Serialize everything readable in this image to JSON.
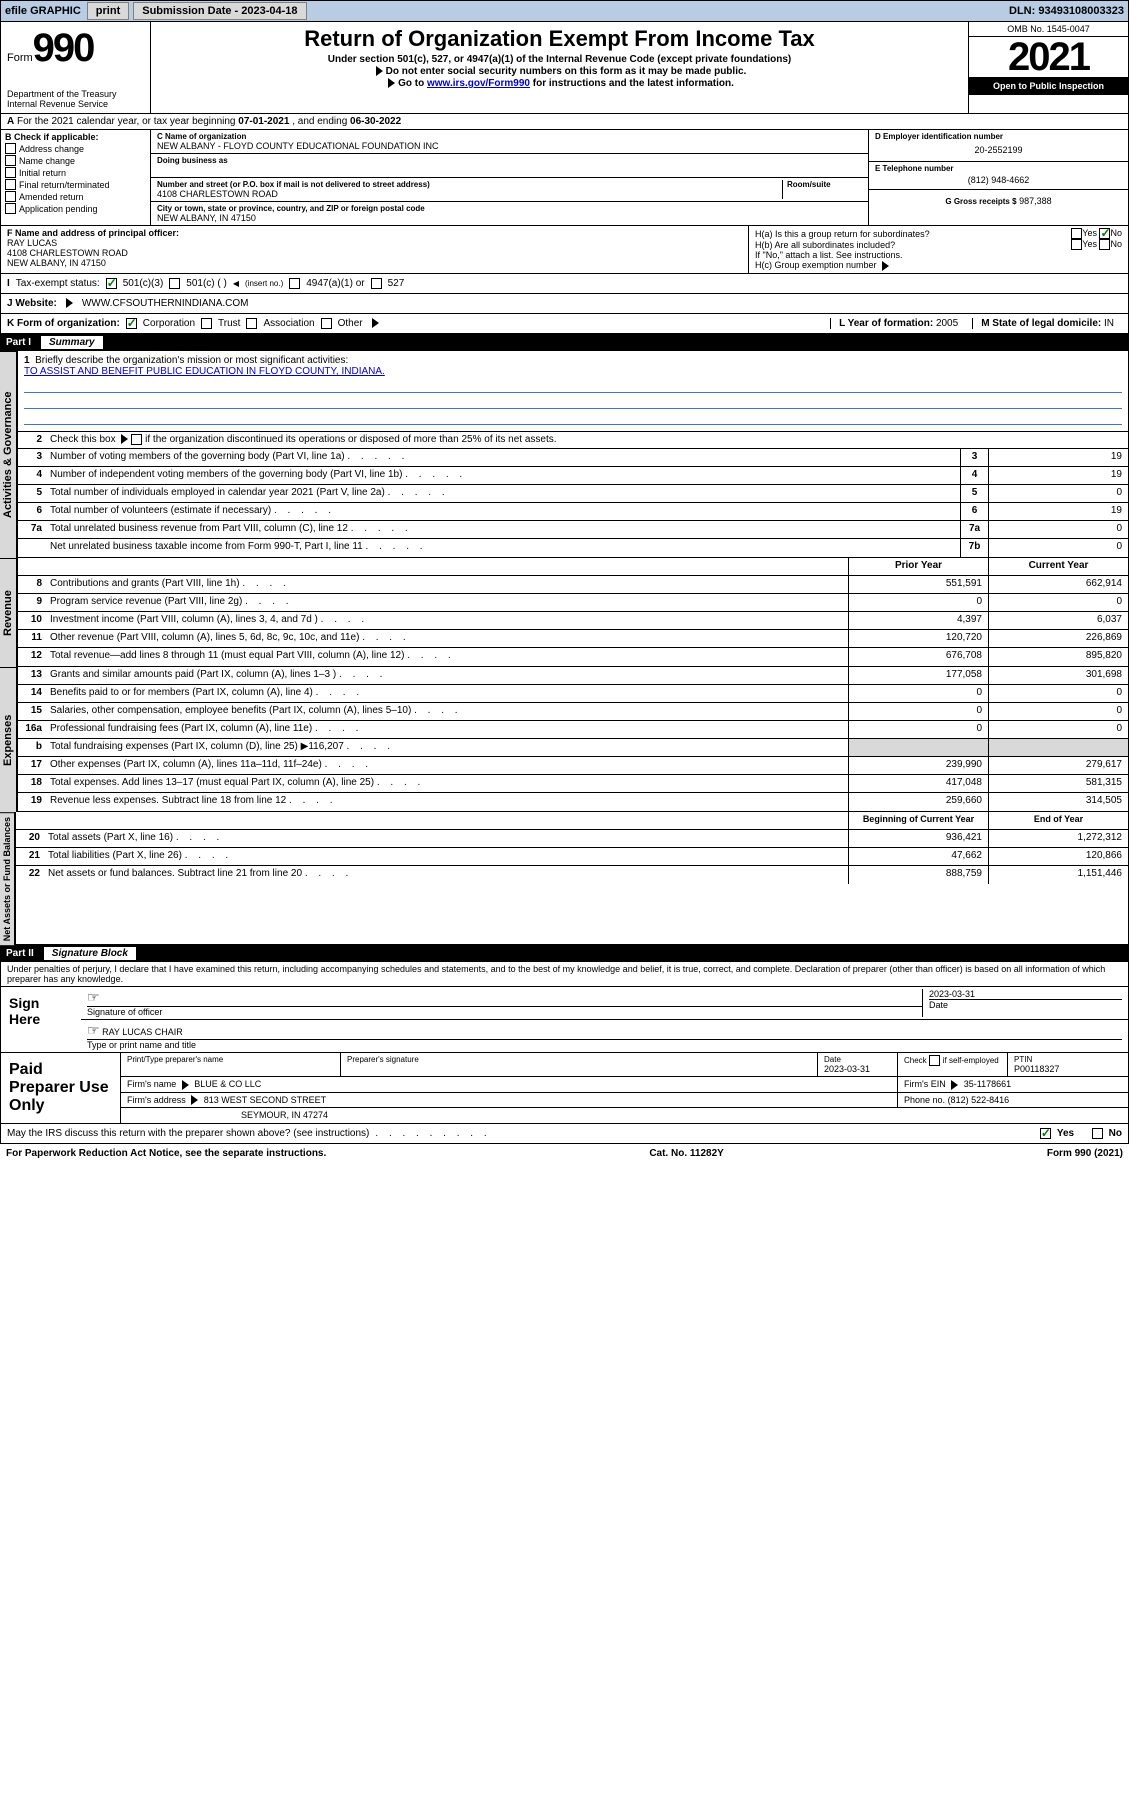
{
  "topbar": {
    "efile": "efile GRAPHIC",
    "print": "print",
    "sub_lbl": "Submission Date - 2023-04-18",
    "dln": "DLN: 93493108003323"
  },
  "header": {
    "form": "Form",
    "num": "990",
    "dept": "Department of the Treasury\nInternal Revenue Service",
    "title": "Return of Organization Exempt From Income Tax",
    "sub1": "Under section 501(c), 527, or 4947(a)(1) of the Internal Revenue Code (except private foundations)",
    "sub2": "Do not enter social security numbers on this form as it may be made public.",
    "sub3": "Go to ",
    "sub3_link": "www.irs.gov/Form990",
    "sub3_tail": " for instructions and the latest information.",
    "omb": "OMB No. 1545-0047",
    "year": "2021",
    "inspect": "Open to Public Inspection"
  },
  "line_a": {
    "text": "For the 2021 calendar year, or tax year beginning ",
    "begin": "07-01-2021",
    "mid": " , and ending ",
    "end": "06-30-2022"
  },
  "col_b": {
    "hdr": "B Check if applicable:",
    "items": [
      "Address change",
      "Name change",
      "Initial return",
      "Final return/terminated",
      "Amended return",
      "Application pending"
    ]
  },
  "col_c": {
    "name_lbl": "C Name of organization",
    "name": "NEW ALBANY - FLOYD COUNTY EDUCATIONAL FOUNDATION INC",
    "dba_lbl": "Doing business as",
    "addr_lbl": "Number and street (or P.O. box if mail is not delivered to street address)",
    "room_lbl": "Room/suite",
    "addr": "4108 CHARLESTOWN ROAD",
    "city_lbl": "City or town, state or province, country, and ZIP or foreign postal code",
    "city": "NEW ALBANY, IN  47150"
  },
  "col_d": {
    "ein_lbl": "D Employer identification number",
    "ein": "20-2552199",
    "tel_lbl": "E Telephone number",
    "tel": "(812) 948-4662",
    "gross_lbl": "G Gross receipts $",
    "gross": "987,388"
  },
  "col_f": {
    "lbl": "F Name and address of principal officer:",
    "name": "RAY LUCAS",
    "addr1": "4108 CHARLESTOWN ROAD",
    "addr2": "NEW ALBANY, IN  47150"
  },
  "col_h": {
    "ha": "H(a)  Is this a group return for subordinates?",
    "hb": "H(b)  Are all subordinates included?",
    "hb_note": "If \"No,\" attach a list. See instructions.",
    "hc": "H(c)  Group exemption number",
    "yes": "Yes",
    "no": "No"
  },
  "tax_status": {
    "lbl": "Tax-exempt status:",
    "o1": "501(c)(3)",
    "o2": "501(c) (  )",
    "o2_tail": "(insert no.)",
    "o3": "4947(a)(1) or",
    "o4": "527"
  },
  "website": {
    "lbl": "J   Website:",
    "val": "WWW.CFSOUTHERNINDIANA.COM"
  },
  "line_k": {
    "lbl": "K Form of organization:",
    "corp": "Corporation",
    "trust": "Trust",
    "assoc": "Association",
    "other": "Other",
    "yof_lbl": "L Year of formation:",
    "yof": "2005",
    "dom_lbl": "M State of legal domicile:",
    "dom": "IN"
  },
  "part1": {
    "hdr": "Part I",
    "ttl": "Summary",
    "tab_gov": "Activities & Governance",
    "tab_rev": "Revenue",
    "tab_exp": "Expenses",
    "tab_net": "Net Assets or Fund Balances",
    "q1": "Briefly describe the organization's mission or most significant activities:",
    "q1_val": "TO ASSIST AND BENEFIT PUBLIC EDUCATION IN FLOYD COUNTY, INDIANA.",
    "q2": "Check this box",
    "q2_tail": "if the organization discontinued its operations or disposed of more than 25% of its net assets.",
    "rows_gov": [
      {
        "n": "3",
        "t": "Number of voting members of the governing body (Part VI, line 1a)",
        "b": "3",
        "v": "19"
      },
      {
        "n": "4",
        "t": "Number of independent voting members of the governing body (Part VI, line 1b)",
        "b": "4",
        "v": "19"
      },
      {
        "n": "5",
        "t": "Total number of individuals employed in calendar year 2021 (Part V, line 2a)",
        "b": "5",
        "v": "0"
      },
      {
        "n": "6",
        "t": "Total number of volunteers (estimate if necessary)",
        "b": "6",
        "v": "19"
      },
      {
        "n": "7a",
        "t": "Total unrelated business revenue from Part VIII, column (C), line 12",
        "b": "7a",
        "v": "0"
      },
      {
        "n": "",
        "t": "Net unrelated business taxable income from Form 990-T, Part I, line 11",
        "b": "7b",
        "v": "0"
      }
    ],
    "prior_lbl": "Prior Year",
    "curr_lbl": "Current Year",
    "rows_rev": [
      {
        "n": "8",
        "t": "Contributions and grants (Part VIII, line 1h)",
        "p": "551,591",
        "c": "662,914"
      },
      {
        "n": "9",
        "t": "Program service revenue (Part VIII, line 2g)",
        "p": "0",
        "c": "0"
      },
      {
        "n": "10",
        "t": "Investment income (Part VIII, column (A), lines 3, 4, and 7d )",
        "p": "4,397",
        "c": "6,037"
      },
      {
        "n": "11",
        "t": "Other revenue (Part VIII, column (A), lines 5, 6d, 8c, 9c, 10c, and 11e)",
        "p": "120,720",
        "c": "226,869"
      },
      {
        "n": "12",
        "t": "Total revenue—add lines 8 through 11 (must equal Part VIII, column (A), line 12)",
        "p": "676,708",
        "c": "895,820"
      }
    ],
    "rows_exp": [
      {
        "n": "13",
        "t": "Grants and similar amounts paid (Part IX, column (A), lines 1–3 )",
        "p": "177,058",
        "c": "301,698"
      },
      {
        "n": "14",
        "t": "Benefits paid to or for members (Part IX, column (A), line 4)",
        "p": "0",
        "c": "0"
      },
      {
        "n": "15",
        "t": "Salaries, other compensation, employee benefits (Part IX, column (A), lines 5–10)",
        "p": "0",
        "c": "0"
      },
      {
        "n": "16a",
        "t": "Professional fundraising fees (Part IX, column (A), line 11e)",
        "p": "0",
        "c": "0"
      },
      {
        "n": "b",
        "t": "Total fundraising expenses (Part IX, column (D), line 25) ▶116,207",
        "p": "",
        "c": "",
        "shade": true
      },
      {
        "n": "17",
        "t": "Other expenses (Part IX, column (A), lines 11a–11d, 11f–24e)",
        "p": "239,990",
        "c": "279,617"
      },
      {
        "n": "18",
        "t": "Total expenses. Add lines 13–17 (must equal Part IX, column (A), line 25)",
        "p": "417,048",
        "c": "581,315"
      },
      {
        "n": "19",
        "t": "Revenue less expenses. Subtract line 18 from line 12",
        "p": "259,660",
        "c": "314,505"
      }
    ],
    "begin_lbl": "Beginning of Current Year",
    "end_lbl": "End of Year",
    "rows_net": [
      {
        "n": "20",
        "t": "Total assets (Part X, line 16)",
        "p": "936,421",
        "c": "1,272,312"
      },
      {
        "n": "21",
        "t": "Total liabilities (Part X, line 26)",
        "p": "47,662",
        "c": "120,866"
      },
      {
        "n": "22",
        "t": "Net assets or fund balances. Subtract line 21 from line 20",
        "p": "888,759",
        "c": "1,151,446"
      }
    ]
  },
  "part2": {
    "hdr": "Part II",
    "ttl": "Signature Block",
    "penalties": "Under penalties of perjury, I declare that I have examined this return, including accompanying schedules and statements, and to the best of my knowledge and belief, it is true, correct, and complete. Declaration of preparer (other than officer) is based on all information of which preparer has any knowledge.",
    "sign_here": "Sign Here",
    "sig_officer": "Signature of officer",
    "sig_date": "2023-03-31",
    "date_lbl": "Date",
    "name_title": "RAY LUCAS CHAIR",
    "name_title_lbl": "Type or print name and title",
    "paid": "Paid Preparer Use Only",
    "prep_name_lbl": "Print/Type preparer's name",
    "prep_sig_lbl": "Preparer's signature",
    "prep_date": "2023-03-31",
    "check_lbl": "Check",
    "self_emp": "if self-employed",
    "ptin_lbl": "PTIN",
    "ptin": "P00118327",
    "firm_name_lbl": "Firm's name",
    "firm_name": "BLUE & CO LLC",
    "firm_ein_lbl": "Firm's EIN",
    "firm_ein": "35-1178661",
    "firm_addr_lbl": "Firm's address",
    "firm_addr1": "813 WEST SECOND STREET",
    "firm_addr2": "SEYMOUR, IN  47274",
    "phone_lbl": "Phone no.",
    "phone": "(812) 522-8416",
    "discuss": "May the IRS discuss this return with the preparer shown above? (see instructions)"
  },
  "footer": {
    "pra": "For Paperwork Reduction Act Notice, see the separate instructions.",
    "cat": "Cat. No. 11282Y",
    "form": "Form 990 (2021)"
  },
  "colors": {
    "topbar_bg": "#b8cce4",
    "btn_bg": "#d9d9d9",
    "shade_bg": "#d9d9d9",
    "link": "#0000cc",
    "check_green": "#008000",
    "rule_blue": "#4472c4"
  }
}
